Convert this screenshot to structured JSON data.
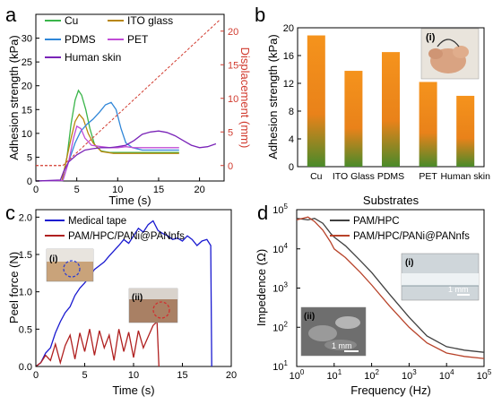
{
  "panels": [
    {
      "id": "a",
      "label": "a"
    },
    {
      "id": "b",
      "label": "b"
    },
    {
      "id": "c",
      "label": "c"
    },
    {
      "id": "d",
      "label": "d"
    }
  ],
  "colors": {
    "cu": "#3ab54a",
    "ito": "#b8860b",
    "pdms": "#2f86d8",
    "pet": "#c04cd6",
    "skin": "#7a24b8",
    "displacement": "#d13a2e",
    "bar_top": "#f08a1a",
    "bar_bottom": "#4a8a2a",
    "tape": "#1a1ad0",
    "pam_c": "#b02020",
    "pamhpc": "#404040",
    "pam_d": "#b8432a"
  },
  "chart_data": [
    {
      "type": "line",
      "panel": "a",
      "xlabel": "Time (s)",
      "ylabel": "Adhesion strength (kPa)",
      "y2label": "Displacement (mm)",
      "xlim": [
        0,
        23
      ],
      "ylim": [
        0,
        35
      ],
      "y2lim": [
        -2.3,
        22.5
      ],
      "xticks": [
        "0",
        "5",
        "10",
        "15",
        "20"
      ],
      "yticks": [
        "0",
        "5",
        "10",
        "15",
        "20",
        "25",
        "30"
      ],
      "y2ticks": [
        "0",
        "5",
        "10",
        "15",
        "20"
      ],
      "legend": [
        "Cu",
        "ITO glass",
        "PDMS",
        "PET",
        "Human skin"
      ],
      "series": [
        {
          "name": "Cu",
          "x": [
            0,
            3.2,
            3.8,
            4.3,
            4.8,
            5.2,
            5.6,
            6.1,
            6.6,
            7.2,
            8.0,
            9.0,
            10.5,
            12,
            14,
            15,
            17.5
          ],
          "y": [
            0,
            0.1,
            5,
            12,
            17,
            19,
            18,
            15,
            11,
            7.5,
            6.3,
            6.0,
            6.0,
            6.0,
            6.0,
            6.0,
            6.0
          ]
        },
        {
          "name": "ITO glass",
          "x": [
            0,
            3.2,
            3.8,
            4.3,
            4.8,
            5.3,
            5.8,
            6.4,
            7.0,
            8.0,
            9.5,
            12,
            15,
            17.5
          ],
          "y": [
            0,
            0.1,
            5,
            9,
            12.5,
            14,
            13,
            10,
            8,
            6.2,
            5.8,
            5.8,
            5.8,
            5.8
          ]
        },
        {
          "name": "PDMS",
          "x": [
            0,
            3.3,
            4.0,
            4.8,
            5.5,
            6.3,
            7.0,
            7.8,
            8.5,
            9.2,
            9.8,
            10.4,
            11.0,
            11.8,
            13,
            15,
            17.5
          ],
          "y": [
            0,
            0.1,
            4,
            8,
            10.5,
            12,
            13,
            14.5,
            16,
            16.5,
            15,
            11,
            8,
            7,
            6.5,
            6.5,
            6.5
          ]
        },
        {
          "name": "PET",
          "x": [
            0,
            3.3,
            4.0,
            4.6,
            5.0,
            5.5,
            6.0,
            6.8,
            8,
            9,
            10,
            11,
            12,
            13,
            14,
            15,
            16.5,
            17.5
          ],
          "y": [
            0,
            0.1,
            4,
            9,
            11.5,
            11,
            9,
            7.5,
            7.2,
            7.0,
            7.0,
            7.2,
            7.0,
            7.0,
            7.0,
            7.0,
            7.0,
            7.0
          ]
        },
        {
          "name": "Human skin",
          "x": [
            0,
            3.0,
            3.4,
            4.0,
            5.0,
            6.0,
            7.0,
            8.0,
            9.0,
            10.0,
            11.0,
            12.0,
            13.0,
            14.0,
            15.0,
            16.0,
            17.0,
            18.0,
            19.0,
            20.0,
            21.0,
            22.0
          ],
          "y": [
            0,
            0.2,
            2,
            4,
            5.5,
            6.5,
            6.8,
            7.0,
            7.0,
            7.2,
            7.5,
            8.5,
            9.8,
            10.3,
            10.5,
            10.2,
            9.5,
            8.5,
            7.5,
            7.0,
            7.2,
            7.8
          ]
        },
        {
          "name": "Displacement",
          "axis": "y2",
          "x": [
            0,
            3.3,
            22.5
          ],
          "y": [
            0,
            0,
            21.7
          ]
        }
      ]
    },
    {
      "type": "bar",
      "panel": "b",
      "xlabel": "Substrates",
      "ylabel": "Adhesion strength (kPa)",
      "categories": [
        "Cu",
        "ITO Glass",
        "PDMS",
        "PET",
        "Human skin"
      ],
      "values": [
        18.9,
        13.8,
        16.5,
        12.2,
        10.2
      ],
      "ylim": [
        0,
        20
      ],
      "yticks": [
        "0",
        "4",
        "8",
        "12",
        "16",
        "20"
      ],
      "inset_label": "(i)"
    },
    {
      "type": "line",
      "panel": "c",
      "xlabel": "Time (s)",
      "ylabel": "Peel force (N)",
      "xlim": [
        0,
        20
      ],
      "ylim": [
        0,
        2.1
      ],
      "xticks": [
        "0",
        "5",
        "10",
        "15",
        "20"
      ],
      "yticks": [
        "0.0",
        "0.5",
        "1.0",
        "1.5",
        "2.0"
      ],
      "legend": [
        "Medical tape",
        "PAM/HPC/PANi@PANnfs"
      ],
      "inset_labels": [
        "(i)",
        "(ii)"
      ],
      "series": [
        {
          "name": "Medical tape",
          "x": [
            0,
            0.5,
            1,
            1.5,
            2,
            2.5,
            3,
            3.5,
            4,
            4.5,
            5,
            5.5,
            6,
            6.5,
            7,
            7.5,
            8,
            8.5,
            9,
            9.5,
            10,
            10.5,
            11,
            11.5,
            12,
            12.5,
            13,
            13.5,
            14,
            14.5,
            15,
            15.5,
            16,
            16.5,
            17,
            17.5,
            17.9,
            18.0
          ],
          "y": [
            0,
            0.05,
            0.18,
            0.25,
            0.45,
            0.6,
            0.72,
            0.8,
            0.95,
            1.05,
            1.12,
            1.2,
            1.3,
            1.35,
            1.4,
            1.48,
            1.55,
            1.62,
            1.7,
            1.65,
            1.75,
            1.85,
            1.8,
            1.9,
            1.95,
            1.82,
            1.78,
            1.75,
            1.7,
            1.72,
            1.68,
            1.75,
            1.7,
            1.62,
            1.68,
            1.7,
            1.62,
            0
          ]
        },
        {
          "name": "PAM/HPC/PANi@PANnfs",
          "x": [
            0,
            0.5,
            1,
            1.5,
            2,
            2.5,
            3,
            3.5,
            4,
            4.5,
            5,
            5.5,
            6,
            6.5,
            7,
            7.5,
            8,
            8.5,
            9,
            9.5,
            10,
            10.5,
            11,
            11.5,
            12,
            12.4,
            12.6
          ],
          "y": [
            0,
            0.05,
            0.15,
            0.08,
            0.3,
            0.05,
            0.28,
            0.42,
            0.1,
            0.45,
            0.2,
            0.5,
            0.15,
            0.48,
            0.25,
            0.42,
            0.08,
            0.5,
            0.2,
            0.46,
            0.12,
            0.48,
            0.25,
            0.4,
            0.55,
            0.6,
            0
          ]
        }
      ]
    },
    {
      "type": "line",
      "panel": "d",
      "xlabel": "Frequency (Hz)",
      "ylabel": "Impedence (Ω)",
      "xscale": "log",
      "yscale": "log",
      "xlim": [
        1,
        100000
      ],
      "ylim": [
        10,
        100000
      ],
      "legend": [
        "PAM/HPC",
        "PAM/HPC/PANi@PANnfs"
      ],
      "inset_labels": [
        "(i)",
        "(ii)"
      ],
      "scale_bar_labels": [
        "1 mm",
        "1 mm"
      ],
      "series": [
        {
          "name": "PAM/HPC",
          "x": [
            1,
            2,
            3,
            5,
            8,
            10,
            20,
            50,
            100,
            300,
            1000,
            3000,
            10000,
            30000,
            100000
          ],
          "y": [
            60000,
            55000,
            60000,
            45000,
            25000,
            20000,
            12000,
            5000,
            2500,
            700,
            180,
            60,
            32,
            26,
            23
          ]
        },
        {
          "name": "PAM/HPC/PANi@PANnfs",
          "x": [
            1,
            2,
            3,
            5,
            8,
            10,
            20,
            50,
            100,
            300,
            1000,
            3000,
            10000,
            30000,
            100000
          ],
          "y": [
            55000,
            65000,
            50000,
            30000,
            15000,
            10000,
            6000,
            2500,
            1200,
            350,
            100,
            40,
            22,
            18,
            16
          ]
        }
      ]
    }
  ]
}
